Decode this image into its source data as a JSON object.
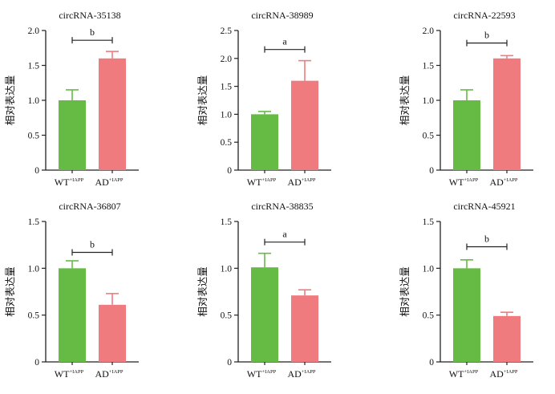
{
  "ylabel": "相对表达量",
  "categories": [
    {
      "main": "WT",
      "sup": "+IAPP"
    },
    {
      "main": "AD",
      "sup": "+IAPP"
    }
  ],
  "colors": {
    "wt": "#66bb44",
    "ad": "#f07b7e",
    "wt_err": "#66bb44",
    "ad_err": "#f07b7e",
    "axis": "#222222"
  },
  "chart_data": [
    {
      "type": "bar",
      "title": "circRNA-35138",
      "categories": [
        "WT+IAPP",
        "AD+IAPP"
      ],
      "values": [
        1.0,
        1.6
      ],
      "errors": [
        0.15,
        0.1
      ],
      "ylim": [
        0,
        2.0
      ],
      "yticks": [
        "0",
        "0.5",
        "1.0",
        "1.5",
        "2.0"
      ],
      "tick_values": [
        0,
        0.5,
        1.0,
        1.5,
        2.0
      ],
      "sig": "b",
      "sig_y": 1.86,
      "ylabel": "相对表达量"
    },
    {
      "type": "bar",
      "title": "circRNA-38989",
      "categories": [
        "WT+IAPP",
        "AD+IAPP"
      ],
      "values": [
        1.0,
        1.6
      ],
      "errors": [
        0.05,
        0.36
      ],
      "ylim": [
        0,
        2.5
      ],
      "yticks": [
        "0",
        "0.5",
        "1.0",
        "1.5",
        "2.0",
        "2.5"
      ],
      "tick_values": [
        0,
        0.5,
        1.0,
        1.5,
        2.0,
        2.5
      ],
      "sig": "a",
      "sig_y": 2.16,
      "ylabel": "相对表达量"
    },
    {
      "type": "bar",
      "title": "circRNA-22593",
      "categories": [
        "WT+IAPP",
        "AD+IAPP"
      ],
      "values": [
        1.0,
        1.6
      ],
      "errors": [
        0.15,
        0.04
      ],
      "ylim": [
        0,
        2.0
      ],
      "yticks": [
        "0",
        "0.5",
        "1.0",
        "1.5",
        "2.0"
      ],
      "tick_values": [
        0,
        0.5,
        1.0,
        1.5,
        2.0
      ],
      "sig": "b",
      "sig_y": 1.82,
      "ylabel": "相对表达量"
    },
    {
      "type": "bar",
      "title": "circRNA-36807",
      "categories": [
        "WT+IAPP",
        "AD+IAPP"
      ],
      "values": [
        1.0,
        0.61
      ],
      "errors": [
        0.08,
        0.12
      ],
      "ylim": [
        0,
        1.5
      ],
      "yticks": [
        "0",
        "0.5",
        "1.0",
        "1.5"
      ],
      "tick_values": [
        0,
        0.5,
        1.0,
        1.5
      ],
      "sig": "b",
      "sig_y": 1.17,
      "ylabel": "相对表达量"
    },
    {
      "type": "bar",
      "title": "circRNA-38835",
      "categories": [
        "WT+IAPP",
        "AD+IAPP"
      ],
      "values": [
        1.01,
        0.71
      ],
      "errors": [
        0.15,
        0.06
      ],
      "ylim": [
        0,
        1.5
      ],
      "yticks": [
        "0",
        "0.5",
        "1.0",
        "1.5"
      ],
      "tick_values": [
        0,
        0.5,
        1.0,
        1.5
      ],
      "sig": "a",
      "sig_y": 1.28,
      "ylabel": "相对表达量"
    },
    {
      "type": "bar",
      "title": "circRNA-45921",
      "categories": [
        "WT+IAPP",
        "AD+IAPP"
      ],
      "values": [
        1.0,
        0.49
      ],
      "errors": [
        0.09,
        0.04
      ],
      "ylim": [
        0,
        1.5
      ],
      "yticks": [
        "0",
        "0.5",
        "1.0",
        "1.5"
      ],
      "tick_values": [
        0,
        0.5,
        1.0,
        1.5
      ],
      "sig": "b",
      "sig_y": 1.23,
      "ylabel": "相对表达量"
    }
  ]
}
